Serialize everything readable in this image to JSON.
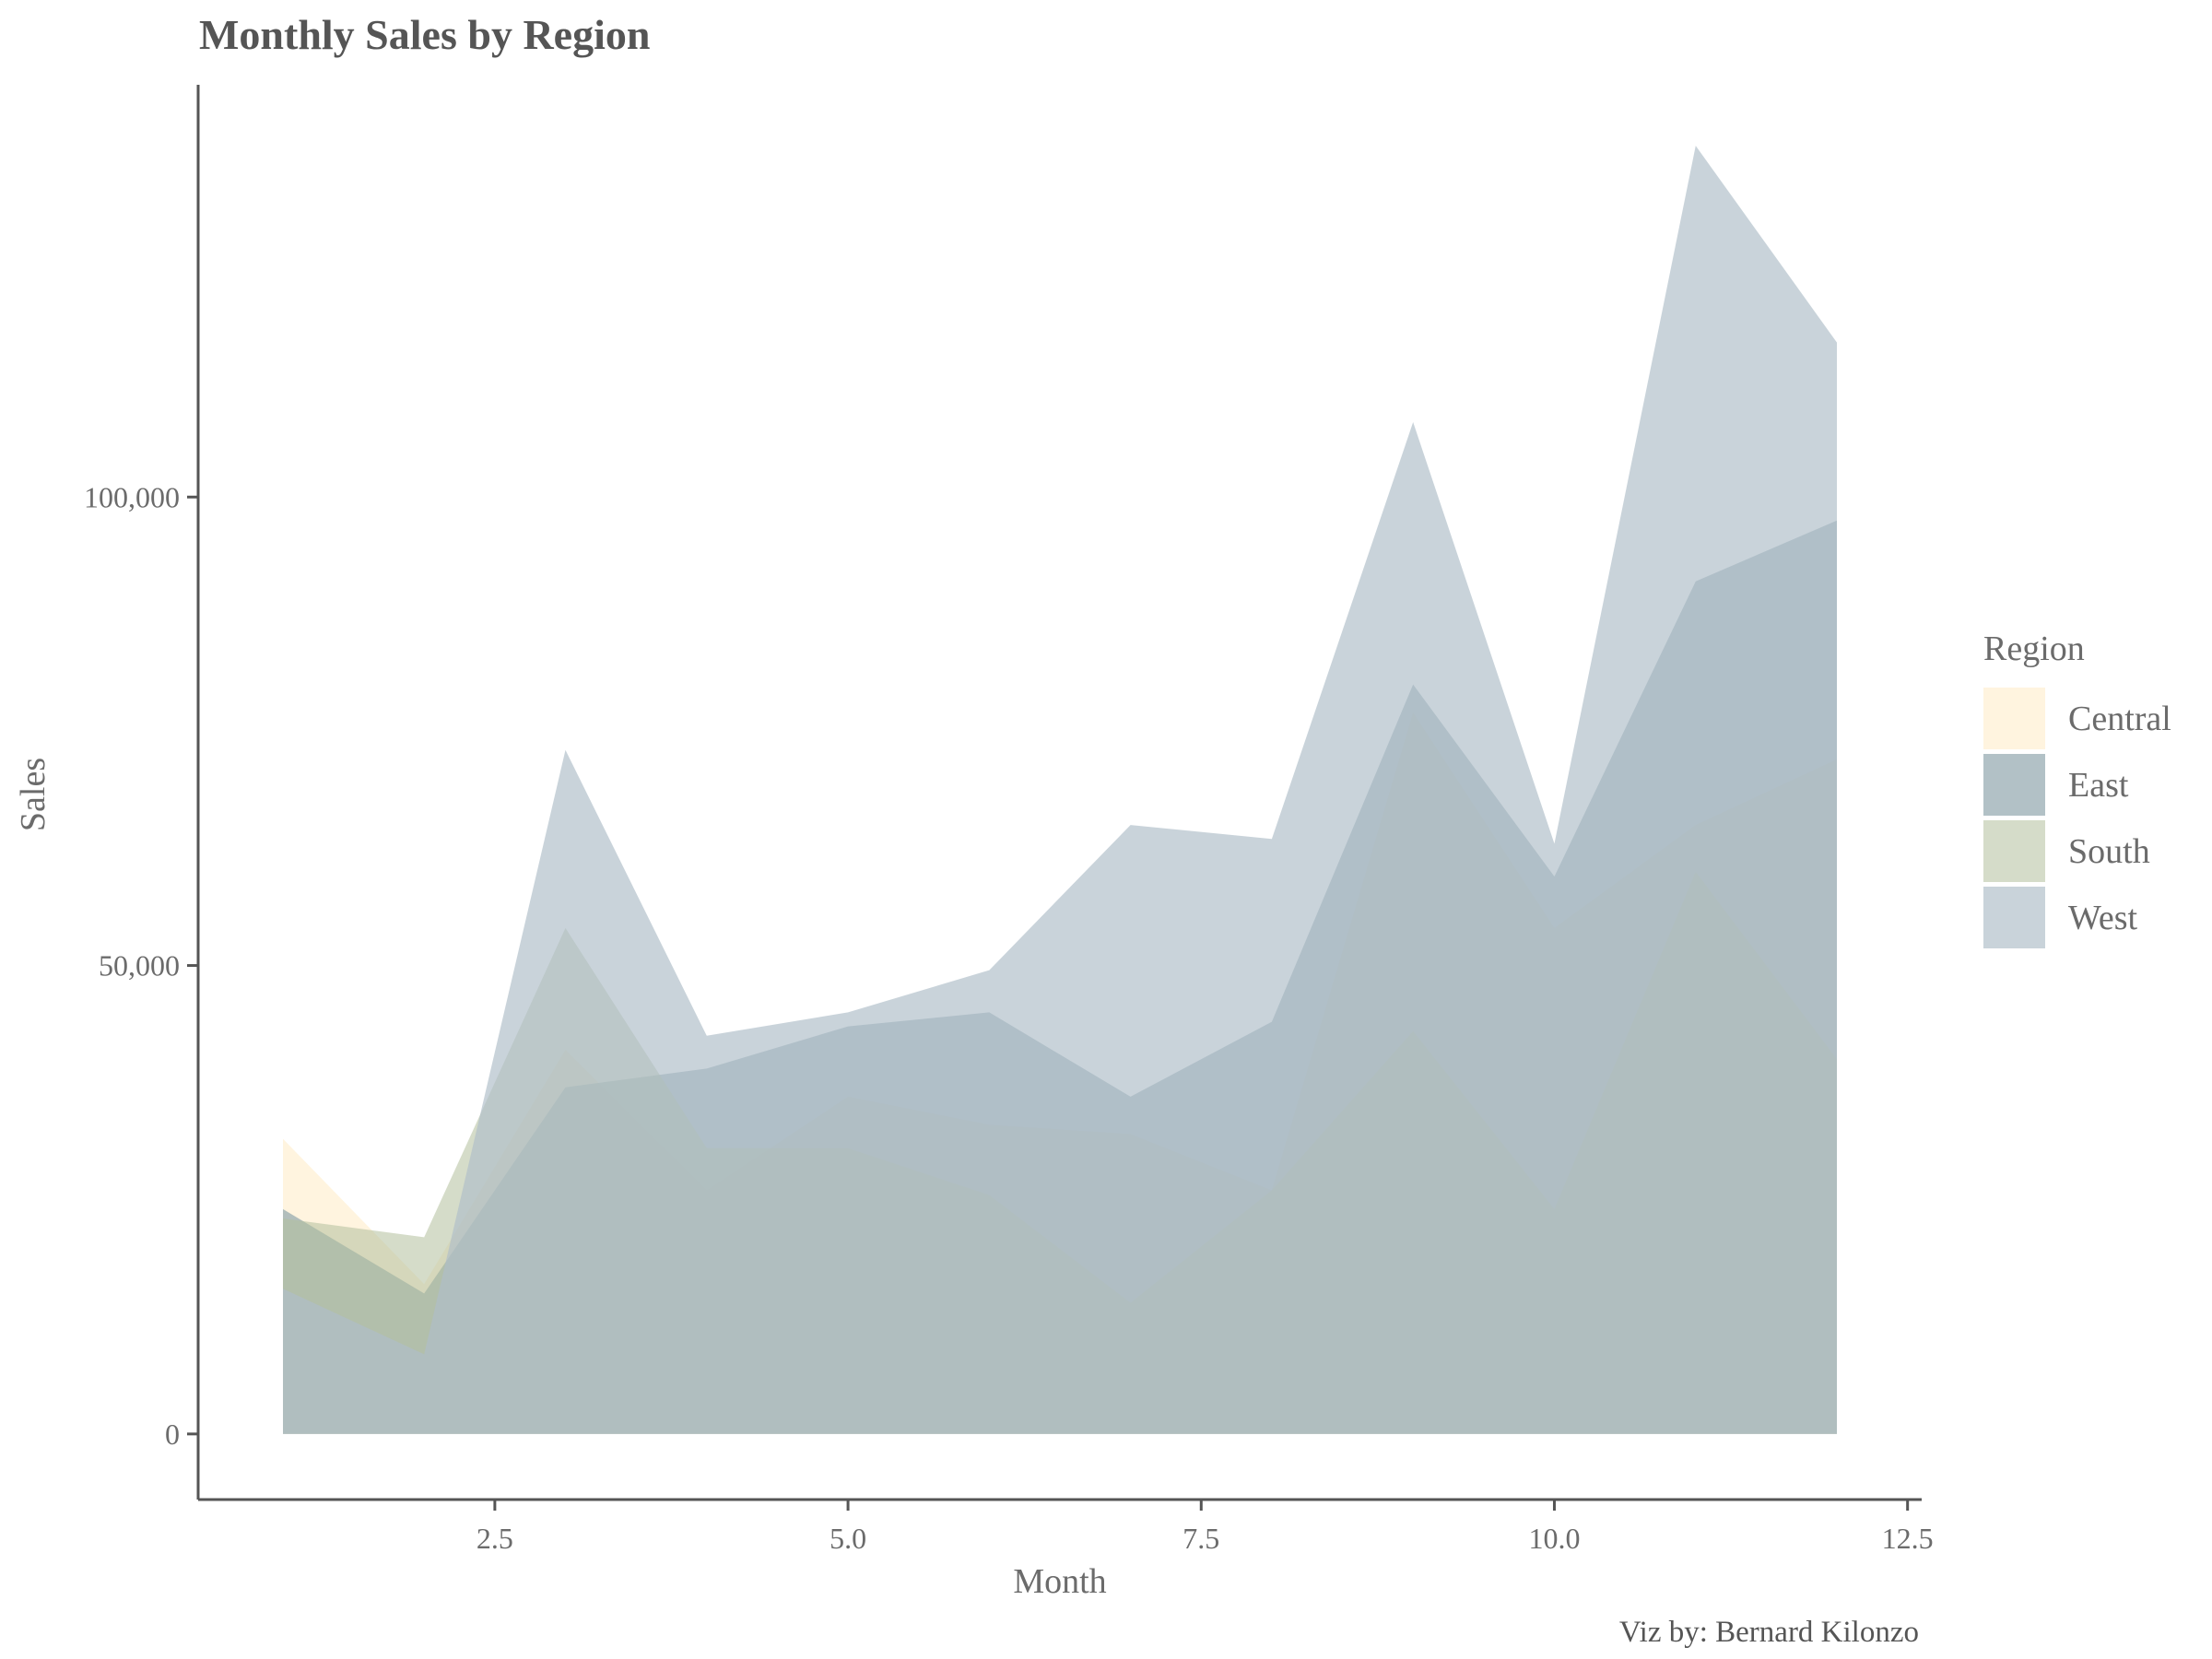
{
  "chart_data": {
    "type": "area",
    "title": "Monthly Sales by Region",
    "xlabel": "Month",
    "ylabel": "Sales",
    "caption": "Viz by: Bernard Kilonzo",
    "legend_title": "Region",
    "legend_position": "right",
    "grid": false,
    "xlim": [
      0.4,
      12.6
    ],
    "ylim": [
      -7000,
      144000
    ],
    "x_ticks": [
      2.5,
      5.0,
      7.5,
      10.0,
      12.5
    ],
    "x_tick_labels": [
      "2.5",
      "5.0",
      "7.5",
      "10.0",
      "12.5"
    ],
    "y_ticks": [
      0,
      50000,
      100000
    ],
    "y_tick_labels": [
      "0",
      "50,000",
      "100,000"
    ],
    "x": [
      1,
      2,
      3,
      4,
      5,
      6,
      7,
      8,
      9,
      10,
      11,
      12
    ],
    "series": [
      {
        "name": "Central",
        "color": "#fff3dc",
        "opacity": 0.9,
        "values": [
          31500,
          16000,
          41000,
          26000,
          36000,
          33000,
          32000,
          26000,
          77000,
          54000,
          65000,
          72000
        ]
      },
      {
        "name": "East",
        "color": "#8ea3ab",
        "opacity": 0.68,
        "values": [
          24000,
          15000,
          37000,
          39000,
          43500,
          45000,
          36000,
          44000,
          80000,
          59500,
          91000,
          97500
        ]
      },
      {
        "name": "South",
        "color": "#b3bf9d",
        "opacity": 0.55,
        "values": [
          23000,
          21000,
          54000,
          30500,
          30500,
          25500,
          14000,
          26000,
          43000,
          24000,
          60000,
          40000
        ]
      },
      {
        "name": "West",
        "color": "#b0bec8",
        "opacity": 0.68,
        "values": [
          15500,
          8500,
          73000,
          42500,
          45000,
          49500,
          65000,
          63500,
          108000,
          63000,
          137500,
          116500
        ]
      }
    ]
  }
}
